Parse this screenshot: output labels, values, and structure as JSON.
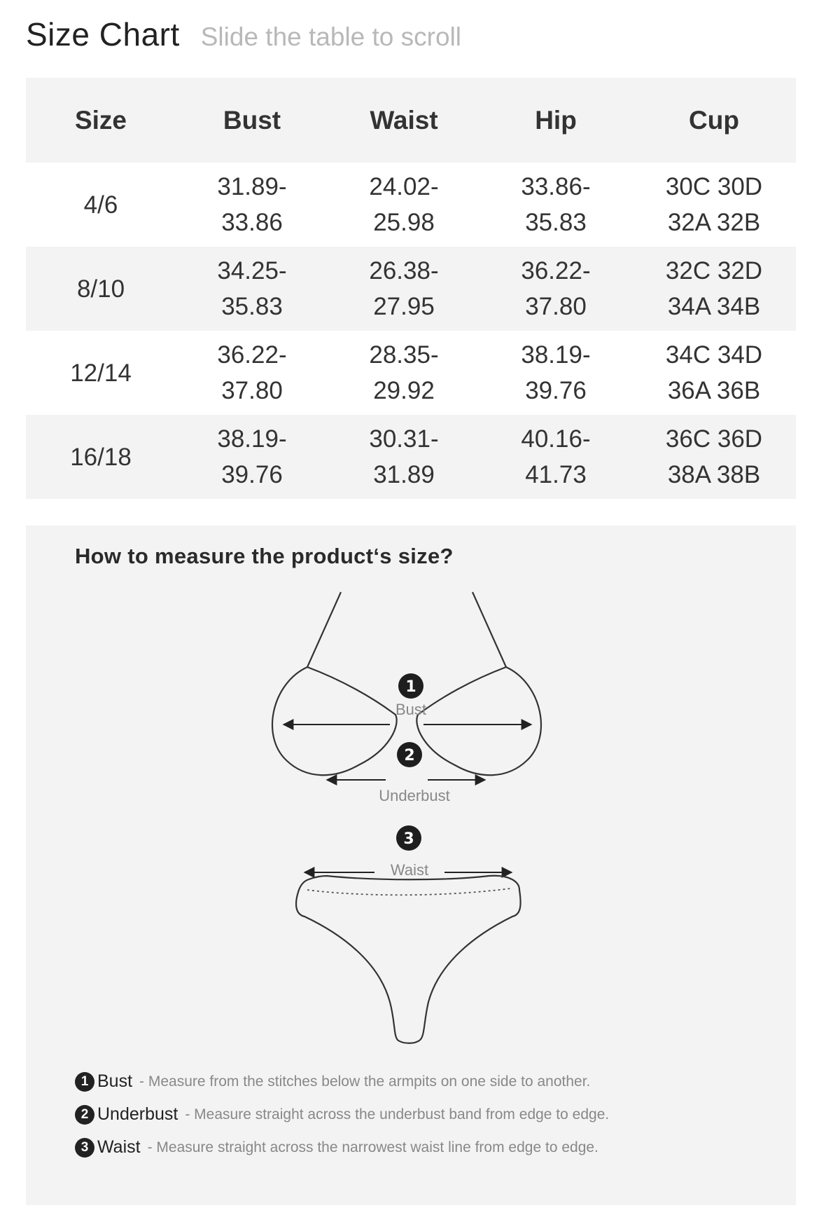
{
  "header": {
    "title": "Size Chart",
    "hint": "Slide the table to scroll"
  },
  "table": {
    "columns": [
      "Size",
      "Bust",
      "Waist",
      "Hip",
      "Cup"
    ],
    "rows": [
      {
        "size": "4/6",
        "bust": [
          "31.89-",
          "33.86"
        ],
        "waist": [
          "24.02-",
          "25.98"
        ],
        "hip": [
          "33.86-",
          "35.83"
        ],
        "cup": [
          "30C 30D",
          "32A 32B"
        ]
      },
      {
        "size": "8/10",
        "bust": [
          "34.25-",
          "35.83"
        ],
        "waist": [
          "26.38-",
          "27.95"
        ],
        "hip": [
          "36.22-",
          "37.80"
        ],
        "cup": [
          "32C 32D",
          "34A 34B"
        ]
      },
      {
        "size": "12/14",
        "bust": [
          "36.22-",
          "37.80"
        ],
        "waist": [
          "28.35-",
          "29.92"
        ],
        "hip": [
          "38.19-",
          "39.76"
        ],
        "cup": [
          "34C 34D",
          "36A 36B"
        ]
      },
      {
        "size": "16/18",
        "bust": [
          "38.19-",
          "39.76"
        ],
        "waist": [
          "30.31-",
          "31.89"
        ],
        "hip": [
          "40.16-",
          "41.73"
        ],
        "cup": [
          "36C 36D",
          "38A 38B"
        ]
      }
    ]
  },
  "measure": {
    "title": "How to measure the product‘s size?",
    "diagram_labels": {
      "bust": "Bust",
      "underbust": "Underbust",
      "waist": "Waist",
      "n1": "1",
      "n2": "2",
      "n3": "3"
    },
    "legend": [
      {
        "num": "1",
        "name": "Bust",
        "desc": "- Measure from the stitches below the armpits on one side to another."
      },
      {
        "num": "2",
        "name": "Underbust",
        "desc": "- Measure straight across the underbust band from edge to edge."
      },
      {
        "num": "3",
        "name": "Waist",
        "desc": "- Measure straight across the narrowest waist line from edge to edge."
      }
    ]
  }
}
